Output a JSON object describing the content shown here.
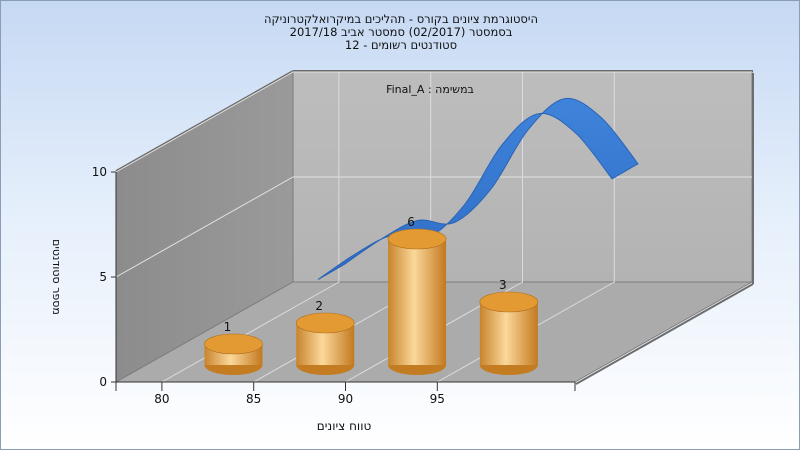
{
  "header": {
    "line1": "היסטוגרמת ציונים בקורס - תהליכים במיקרואלקטרוניקה",
    "line2": "בסמסטר  (02/2017)  סמסטר אביב 2017/18",
    "line3": "סטודנטים רשומים - 12"
  },
  "chart_data": {
    "type": "bar",
    "annotation": "Final_A : במשימה",
    "xlabel": "טווח ציונים",
    "ylabel": "מספר סטודנטים",
    "y_ticks": [
      "0",
      "5",
      "10"
    ],
    "x_ticks": [
      "80",
      "85",
      "90",
      "95"
    ],
    "ylim": [
      0,
      10
    ],
    "categories": [
      "80-85",
      "85-90",
      "90-95",
      "95-100"
    ],
    "values": [
      1,
      2,
      6,
      3
    ],
    "value_labels": [
      "1",
      "2",
      "6",
      "3"
    ],
    "curve_values": [
      2.4,
      3.6,
      4.5,
      4.4,
      6.0,
      8.8,
      10.3,
      9.4,
      7.2
    ],
    "style": "3d",
    "grid": true,
    "colors": {
      "bar": "#e8a543",
      "curve": "#3d7fd6",
      "wall": "#b8b8b8",
      "floor": "#ababab"
    }
  }
}
